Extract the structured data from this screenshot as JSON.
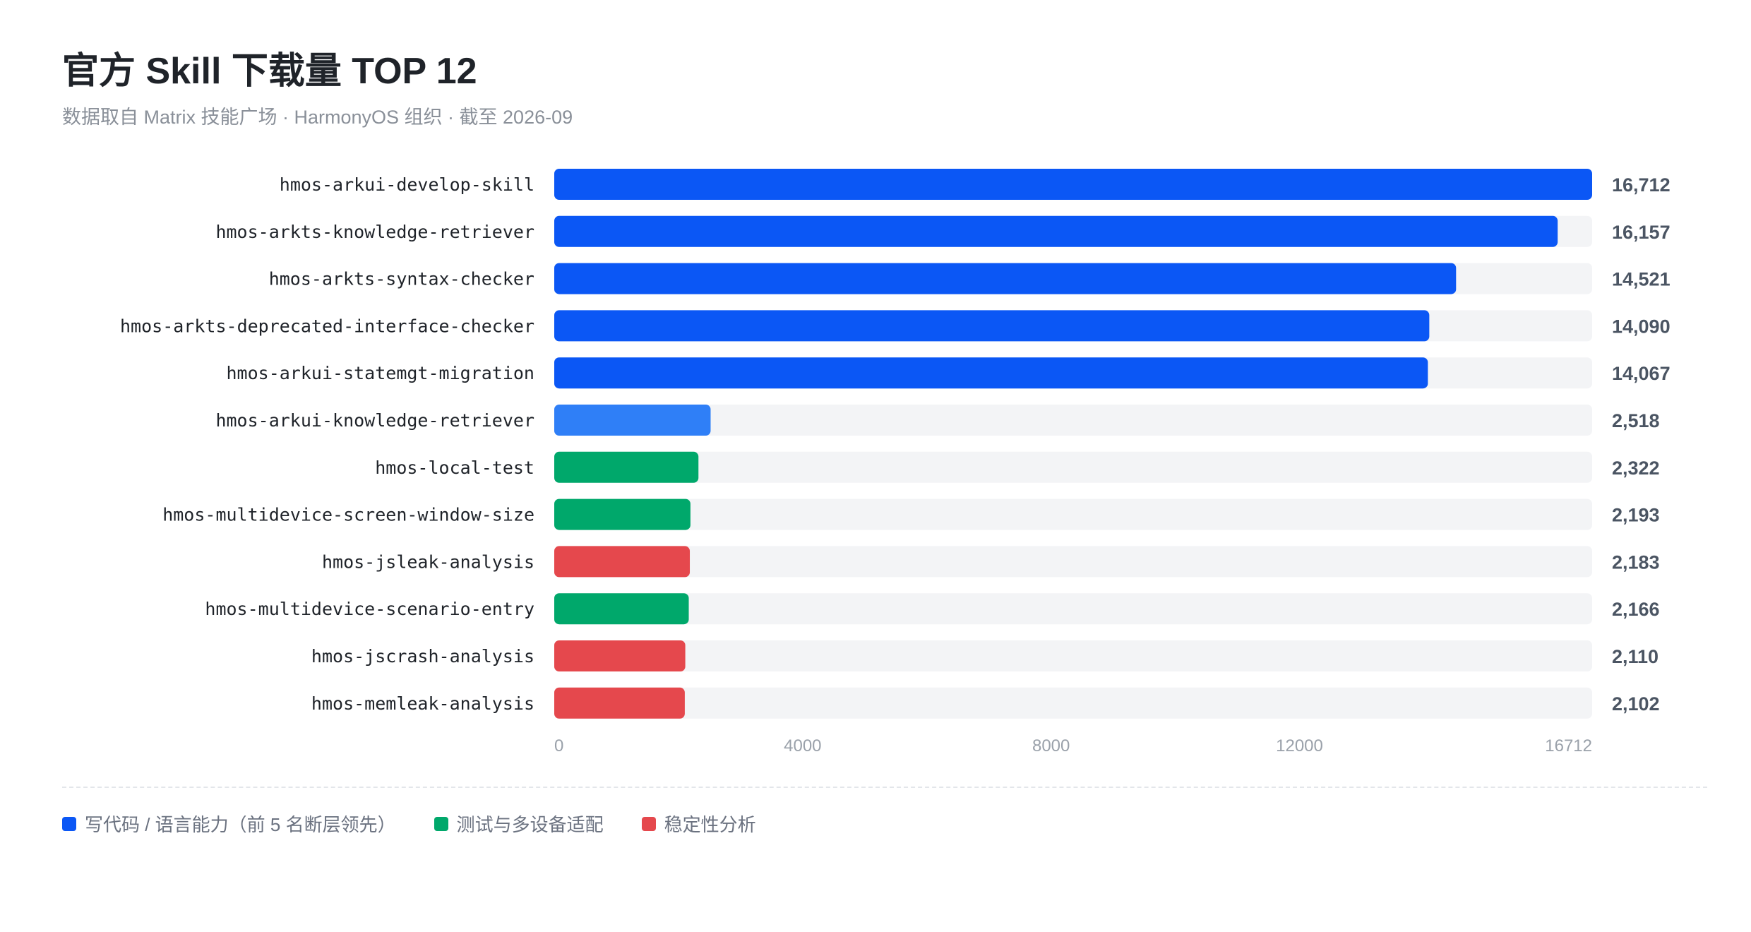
{
  "header": {
    "title": "官方 Skill 下载量 TOP 12",
    "subtitle": "数据取自 Matrix 技能广场 · HarmonyOS 组织 · 截至 2026-09"
  },
  "colors": {
    "coding": "#0b57f5",
    "coding_light": "#2f7ff7",
    "testing": "#00a86b",
    "stability": "#e5484d",
    "track": "#f3f4f6"
  },
  "legend": [
    {
      "label": "写代码 / 语言能力（前 5 名断层领先）",
      "color": "#0b57f5"
    },
    {
      "label": "测试与多设备适配",
      "color": "#00a86b"
    },
    {
      "label": "稳定性分析",
      "color": "#e5484d"
    }
  ],
  "chart_data": {
    "type": "bar",
    "orientation": "horizontal",
    "title": "官方 Skill 下载量 TOP 12",
    "xlim": [
      0,
      16712
    ],
    "x_ticks": [
      0,
      4000,
      8000,
      12000,
      16712
    ],
    "grid": false,
    "legend_position": "bottom-left",
    "categories": [
      "hmos-arkui-develop-skill",
      "hmos-arkts-knowledge-retriever",
      "hmos-arkts-syntax-checker",
      "hmos-arkts-deprecated-interface-checker",
      "hmos-arkui-statemgt-migration",
      "hmos-arkui-knowledge-retriever",
      "hmos-local-test",
      "hmos-multidevice-screen-window-size",
      "hmos-jsleak-analysis",
      "hmos-multidevice-scenario-entry",
      "hmos-jscrash-analysis",
      "hmos-memleak-analysis"
    ],
    "values": [
      16712,
      16157,
      14521,
      14090,
      14067,
      2518,
      2322,
      2193,
      2183,
      2166,
      2110,
      2102
    ],
    "value_labels": [
      "16,712",
      "16,157",
      "14,521",
      "14,090",
      "14,067",
      "2,518",
      "2,322",
      "2,193",
      "2,183",
      "2,166",
      "2,110",
      "2,102"
    ],
    "bar_colors": [
      "#0b57f5",
      "#0b57f5",
      "#0b57f5",
      "#0b57f5",
      "#0b57f5",
      "#2f7ff7",
      "#00a86b",
      "#00a86b",
      "#e5484d",
      "#00a86b",
      "#e5484d",
      "#e5484d"
    ]
  }
}
